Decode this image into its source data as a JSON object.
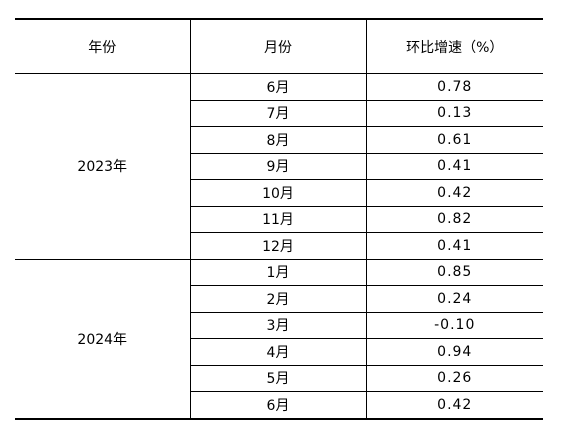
{
  "table": {
    "headers": {
      "year": "年份",
      "month": "月份",
      "rate": "环比增速（%）"
    },
    "groups": [
      {
        "year": "2023年",
        "rows": [
          {
            "month": "6月",
            "rate": "0.78"
          },
          {
            "month": "7月",
            "rate": "0.13"
          },
          {
            "month": "8月",
            "rate": "0.61"
          },
          {
            "month": "9月",
            "rate": "0.41"
          },
          {
            "month": "10月",
            "rate": "0.42"
          },
          {
            "month": "11月",
            "rate": "0.82"
          },
          {
            "month": "12月",
            "rate": "0.41"
          }
        ]
      },
      {
        "year": "2024年",
        "rows": [
          {
            "month": "1月",
            "rate": "0.85"
          },
          {
            "month": "2月",
            "rate": "0.24"
          },
          {
            "month": "3月",
            "rate": "-0.10"
          },
          {
            "month": "4月",
            "rate": "0.94"
          },
          {
            "month": "5月",
            "rate": "0.26"
          },
          {
            "month": "6月",
            "rate": "0.42"
          }
        ]
      }
    ]
  }
}
